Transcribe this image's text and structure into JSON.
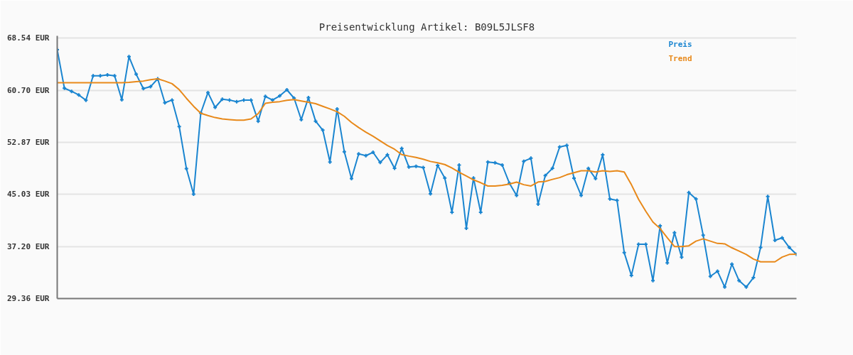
{
  "chart_data": {
    "type": "line",
    "title": "Preisentwicklung Artikel: B09L5JLSF8",
    "categories": [
      null,
      null,
      null,
      null,
      null,
      null,
      null,
      null,
      null,
      null,
      null,
      null,
      null,
      null,
      null,
      null,
      null,
      null,
      null,
      null,
      null,
      null,
      null,
      null,
      null,
      null,
      null,
      null,
      null,
      null,
      null,
      null,
      null,
      null,
      null,
      null,
      null,
      null,
      null,
      null,
      null,
      null,
      null,
      null,
      null,
      null,
      null,
      null,
      null,
      null,
      null,
      null,
      null,
      null,
      null,
      null,
      null,
      null,
      null,
      null,
      null,
      null,
      null,
      null,
      null,
      null,
      null,
      null,
      null,
      null,
      null,
      null,
      null,
      null,
      null,
      null,
      null,
      null,
      null,
      null,
      null,
      null,
      null,
      null,
      null,
      null,
      null,
      null,
      null,
      null,
      null,
      null,
      null,
      null,
      null,
      null,
      null,
      null,
      null,
      null,
      null,
      null,
      null,
      null
    ],
    "series": [
      {
        "name": "Preis",
        "color": "#1a85d0",
        "marker": "cross",
        "values": [
          66.81,
          61.02,
          60.55,
          60.01,
          59.21,
          62.89,
          62.89,
          63.01,
          62.89,
          59.29,
          65.77,
          63.12,
          60.97,
          61.25,
          62.43,
          58.83,
          59.24,
          55.25,
          48.92,
          45.07,
          57.28,
          60.36,
          58.13,
          59.36,
          59.24,
          58.98,
          59.24,
          59.24,
          56.06,
          59.78,
          59.24,
          59.86,
          60.78,
          59.52,
          56.29,
          59.59,
          56.06,
          54.71,
          49.91,
          57.9,
          51.45,
          47.42,
          51.14,
          50.87,
          51.37,
          49.84,
          50.99,
          48.98,
          51.95,
          49.15,
          49.26,
          49.07,
          45.11,
          49.41,
          47.49,
          42.35,
          49.45,
          39.93,
          47.49,
          42.35,
          49.91,
          49.79,
          49.45,
          46.73,
          44.88,
          50.02,
          50.48,
          43.57,
          47.88,
          48.96,
          52.18,
          52.41,
          47.48,
          44.88,
          48.95,
          47.42,
          50.99,
          44.34,
          44.14,
          36.27,
          32.82,
          37.54,
          37.54,
          32.05,
          40.31,
          34.74,
          39.27,
          35.58,
          45.3,
          44.34,
          38.89,
          32.7,
          33.47,
          31.09,
          34.55,
          32.05,
          31.09,
          32.51,
          37.05,
          44.72,
          38.12,
          38.5,
          37.05,
          36.01
        ]
      },
      {
        "name": "Trend",
        "color": "#e8891a",
        "marker": "none",
        "values": [
          61.86,
          61.86,
          61.86,
          61.86,
          61.86,
          61.86,
          61.86,
          61.86,
          61.86,
          61.86,
          61.9,
          62.0,
          62.1,
          62.3,
          62.43,
          62.1,
          61.7,
          60.8,
          59.5,
          58.3,
          57.25,
          56.9,
          56.6,
          56.4,
          56.3,
          56.21,
          56.21,
          56.4,
          57.2,
          58.75,
          58.9,
          59.0,
          59.2,
          59.32,
          59.1,
          58.9,
          58.7,
          58.3,
          57.9,
          57.48,
          56.8,
          55.86,
          55.1,
          54.4,
          53.79,
          53.1,
          52.4,
          51.83,
          51.03,
          50.8,
          50.6,
          50.33,
          50.0,
          49.8,
          49.53,
          49.0,
          48.38,
          47.8,
          47.23,
          46.8,
          46.3,
          46.3,
          46.4,
          46.6,
          46.88,
          46.5,
          46.3,
          46.9,
          47.0,
          47.3,
          47.57,
          48.0,
          48.3,
          48.6,
          48.6,
          48.4,
          48.6,
          48.5,
          48.6,
          48.4,
          46.5,
          44.3,
          42.5,
          40.88,
          39.9,
          38.5,
          37.19,
          37.2,
          37.3,
          38.0,
          38.35,
          38.0,
          37.66,
          37.6,
          37.0,
          36.51,
          36.0,
          35.3,
          34.89,
          34.89,
          34.89,
          35.6,
          36.0,
          36.05
        ]
      }
    ],
    "ylim": [
      29.36,
      68.9
    ],
    "yticks": [
      {
        "value": 29.36,
        "label": "29.36 EUR"
      },
      {
        "value": 37.2,
        "label": "37.20 EUR"
      },
      {
        "value": 45.03,
        "label": "45.03 EUR"
      },
      {
        "value": 52.87,
        "label": "52.87 EUR"
      },
      {
        "value": 60.7,
        "label": "60.70 EUR"
      },
      {
        "value": 68.54,
        "label": "68.54 EUR"
      }
    ],
    "grid": "y",
    "legend": "top right",
    "line_style": "solid",
    "tick_labels": "y"
  }
}
